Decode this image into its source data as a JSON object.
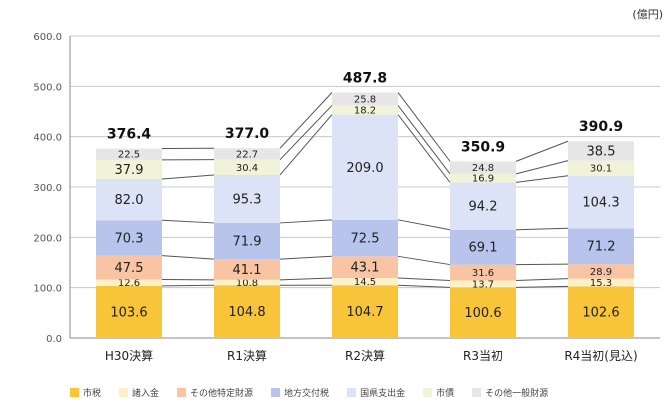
{
  "unit_label": "(億円)",
  "chart_data": {
    "type": "bar",
    "stacked": true,
    "categories": [
      "H30決算",
      "R1決算",
      "R2決算",
      "R3当初",
      "R4当初(見込)"
    ],
    "ylim": [
      0,
      600
    ],
    "yticks": [
      "0.0",
      "100.0",
      "200.0",
      "300.0",
      "400.0",
      "500.0",
      "600.0"
    ],
    "totals": [
      "376.4",
      "377.0",
      "487.8",
      "350.9",
      "390.9"
    ],
    "series": [
      {
        "name": "市税",
        "color": "#f7c43a",
        "values": [
          103.6,
          104.8,
          104.7,
          100.6,
          102.6
        ]
      },
      {
        "name": "諸入金",
        "color": "#fbf0c6",
        "values": [
          12.6,
          10.8,
          14.5,
          13.7,
          15.3
        ]
      },
      {
        "name": "その他特定財源",
        "color": "#f9c4a4",
        "values": [
          47.5,
          41.1,
          43.1,
          31.6,
          28.9
        ]
      },
      {
        "name": "地方交付税",
        "color": "#b9c4ec",
        "values": [
          70.3,
          71.9,
          72.5,
          69.1,
          71.2
        ]
      },
      {
        "name": "国県支出金",
        "color": "#dde3f6",
        "values": [
          82.0,
          95.3,
          209.0,
          94.2,
          104.3
        ]
      },
      {
        "name": "市債",
        "color": "#f0f3d8",
        "values": [
          37.9,
          30.4,
          18.2,
          16.9,
          30.1
        ]
      },
      {
        "name": "その他一般財源",
        "color": "#e6e6e6",
        "values": [
          22.5,
          22.7,
          25.8,
          24.8,
          38.5
        ]
      }
    ]
  }
}
